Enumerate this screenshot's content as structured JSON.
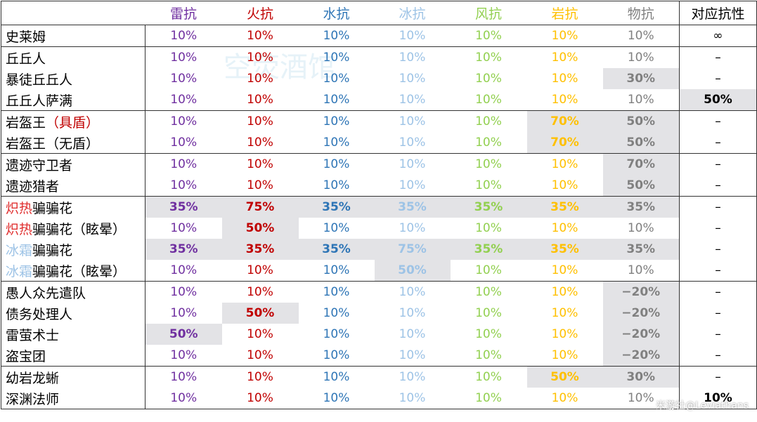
{
  "header": {
    "columns": [
      {
        "text": "雷抗",
        "color": "#7030a0"
      },
      {
        "text": "火抗",
        "color": "#c00000"
      },
      {
        "text": "水抗",
        "color": "#2e75b6"
      },
      {
        "text": "冰抗",
        "color": "#9dc3e6"
      },
      {
        "text": "风抗",
        "color": "#92d050"
      },
      {
        "text": "岩抗",
        "color": "#ffc000"
      },
      {
        "text": "物抗",
        "color": "#808080"
      },
      {
        "text": "对应抗性",
        "color": "#000000"
      }
    ]
  },
  "table": {
    "groups": [
      [
        {
          "name": [
            {
              "text": "史莱姆"
            }
          ],
          "cells": [
            "10%",
            "10%",
            "10%",
            "10%",
            "10%",
            "10%",
            "10%",
            "∞"
          ]
        }
      ],
      [
        {
          "name": [
            {
              "text": "丘丘人"
            }
          ],
          "cells": [
            "10%",
            "10%",
            "10%",
            "10%",
            "10%",
            "10%",
            "10%",
            "–"
          ]
        },
        {
          "name": [
            {
              "text": "暴徒丘丘人"
            }
          ],
          "cells": [
            "10%",
            "10%",
            "10%",
            "10%",
            "10%",
            "10%",
            {
              "text": "30%",
              "highlight": true
            },
            "–"
          ]
        },
        {
          "name": [
            {
              "text": "丘丘人萨满"
            }
          ],
          "cells": [
            "10%",
            "10%",
            "10%",
            "10%",
            "10%",
            "10%",
            "10%",
            {
              "text": "50%",
              "highlight": true
            }
          ]
        }
      ],
      [
        {
          "name": [
            {
              "text": "岩盔王"
            },
            {
              "text": "（具盾）",
              "color": "#c00000"
            }
          ],
          "cells": [
            "10%",
            "10%",
            "10%",
            "10%",
            "10%",
            {
              "text": "70%",
              "highlight": true
            },
            {
              "text": "50%",
              "highlight": true
            },
            "–"
          ]
        },
        {
          "name": [
            {
              "text": "岩盔王（无盾）"
            }
          ],
          "cells": [
            "10%",
            "10%",
            "10%",
            "10%",
            "10%",
            {
              "text": "70%",
              "highlight": true
            },
            {
              "text": "50%",
              "highlight": true
            },
            "–"
          ]
        }
      ],
      [
        {
          "name": [
            {
              "text": "遗迹守卫者"
            }
          ],
          "cells": [
            "10%",
            "10%",
            "10%",
            "10%",
            "10%",
            "10%",
            {
              "text": "70%",
              "highlight": true
            },
            "–"
          ]
        },
        {
          "name": [
            {
              "text": "遗迹猎者"
            }
          ],
          "cells": [
            "10%",
            "10%",
            "10%",
            "10%",
            "10%",
            "10%",
            {
              "text": "50%",
              "highlight": true
            },
            "–"
          ]
        }
      ],
      [
        {
          "name": [
            {
              "text": "炽热",
              "color": "#e03030"
            },
            {
              "text": "骗骗花"
            }
          ],
          "cells": [
            {
              "text": "35%",
              "highlight": true
            },
            {
              "text": "75%",
              "highlight": true
            },
            {
              "text": "35%",
              "highlight": true
            },
            {
              "text": "35%",
              "highlight": true
            },
            {
              "text": "35%",
              "highlight": true
            },
            {
              "text": "35%",
              "highlight": true
            },
            {
              "text": "35%",
              "highlight": true
            },
            "–"
          ]
        },
        {
          "name": [
            {
              "text": "炽热",
              "color": "#e03030"
            },
            {
              "text": "骗骗花（眩晕）"
            }
          ],
          "cells": [
            "10%",
            {
              "text": "50%",
              "highlight": true
            },
            "10%",
            "10%",
            "10%",
            "10%",
            "10%",
            "–"
          ]
        },
        {
          "name": [
            {
              "text": "冰霜",
              "color": "#9dc3e6"
            },
            {
              "text": "骗骗花"
            }
          ],
          "cells": [
            {
              "text": "35%",
              "highlight": true
            },
            {
              "text": "35%",
              "highlight": true
            },
            {
              "text": "35%",
              "highlight": true
            },
            {
              "text": "75%",
              "highlight": true
            },
            {
              "text": "35%",
              "highlight": true
            },
            {
              "text": "35%",
              "highlight": true
            },
            {
              "text": "35%",
              "highlight": true
            },
            "–"
          ]
        },
        {
          "name": [
            {
              "text": "冰霜",
              "color": "#9dc3e6"
            },
            {
              "text": "骗骗花（眩晕）"
            }
          ],
          "cells": [
            "10%",
            "10%",
            "10%",
            {
              "text": "50%",
              "highlight": true
            },
            "10%",
            "10%",
            "10%",
            "–"
          ]
        }
      ],
      [
        {
          "name": [
            {
              "text": "愚人众先遣队"
            }
          ],
          "cells": [
            "10%",
            "10%",
            "10%",
            "10%",
            "10%",
            "10%",
            {
              "text": "−20%",
              "highlight": true
            },
            "–"
          ]
        },
        {
          "name": [
            {
              "text": "债务处理人"
            }
          ],
          "cells": [
            "10%",
            {
              "text": "50%",
              "highlight": true
            },
            "10%",
            "10%",
            "10%",
            "10%",
            {
              "text": "−20%",
              "highlight": true
            },
            "–"
          ]
        },
        {
          "name": [
            {
              "text": "雷萤术士"
            }
          ],
          "cells": [
            {
              "text": "50%",
              "highlight": true
            },
            "10%",
            "10%",
            "10%",
            "10%",
            "10%",
            {
              "text": "−20%",
              "highlight": true
            },
            "–"
          ]
        },
        {
          "name": [
            {
              "text": "盗宝团"
            }
          ],
          "cells": [
            "10%",
            "10%",
            "10%",
            "10%",
            "10%",
            "10%",
            {
              "text": "−20%",
              "highlight": true
            },
            "–"
          ]
        }
      ],
      [
        {
          "name": [
            {
              "text": "幼岩龙蜥"
            }
          ],
          "cells": [
            "10%",
            "10%",
            "10%",
            "10%",
            "10%",
            {
              "text": "50%",
              "highlight": true
            },
            {
              "text": "30%",
              "highlight": true
            },
            "–"
          ]
        },
        {
          "name": [
            {
              "text": "深渊法师"
            }
          ],
          "cells": [
            "10%",
            "10%",
            "10%",
            "10%",
            "10%",
            "10%",
            "10%",
            {
              "text": "10%",
              "bold": true
            }
          ]
        }
      ]
    ]
  },
  "watermarks": {
    "background": "空荧酒馆",
    "credit": "米游社@Leviathans"
  }
}
